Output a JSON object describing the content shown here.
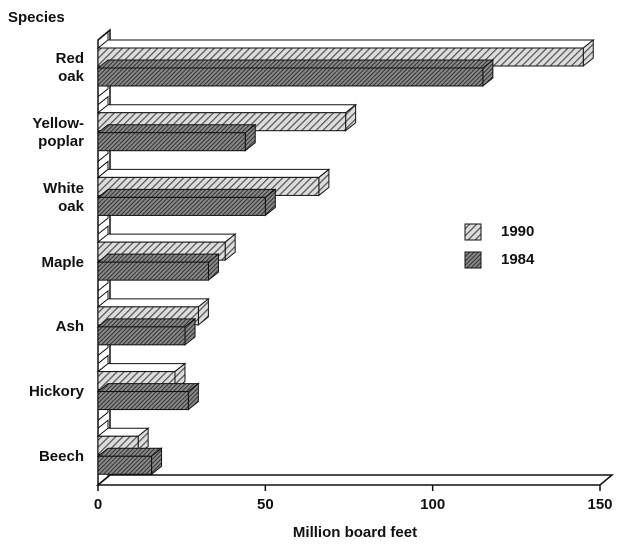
{
  "chart_data": {
    "type": "bar",
    "orientation": "horizontal",
    "y_label": "Species",
    "x_label": "Million board feet",
    "categories": [
      "Red\noak",
      "Yellow-\npoplar",
      "White\noak",
      "Maple",
      "Ash",
      "Hickory",
      "Beech"
    ],
    "series": [
      {
        "name": "1990",
        "color": "#555555",
        "values": [
          145,
          74,
          66,
          38,
          30,
          23,
          12
        ]
      },
      {
        "name": "1984",
        "color": "#333333",
        "values": [
          115,
          44,
          50,
          33,
          26,
          27,
          16
        ]
      }
    ],
    "xlim": [
      0,
      150
    ],
    "xticks": [
      0,
      50,
      100,
      150
    ],
    "legend": "right"
  }
}
